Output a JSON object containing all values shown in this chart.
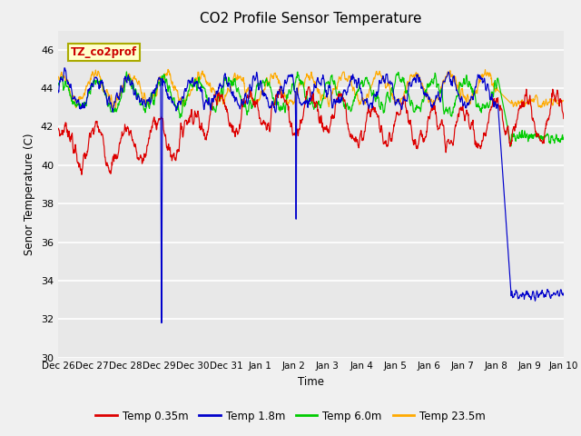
{
  "title": "CO2 Profile Sensor Temperature",
  "ylabel": "Senor Temperature (C)",
  "xlabel": "Time",
  "annotation": "TZ_co2prof",
  "ylim": [
    30,
    47
  ],
  "yticks": [
    30,
    32,
    34,
    36,
    38,
    40,
    42,
    44,
    46
  ],
  "line_colors": {
    "temp035": "#dd0000",
    "temp18": "#0000cc",
    "temp60": "#00cc00",
    "temp235": "#ffaa00"
  },
  "legend_labels": [
    "Temp 0.35m",
    "Temp 1.8m",
    "Temp 6.0m",
    "Temp 23.5m"
  ],
  "x_tick_labels": [
    "Dec 26",
    "Dec 27",
    "Dec 28",
    "Dec 29",
    "Dec 30",
    "Dec 31",
    "Jan 1",
    "Jan 2",
    "Jan 3",
    "Jan 4",
    "Jan 5",
    "Jan 6",
    "Jan 7",
    "Jan 8",
    "Jan 9",
    "Jan 10"
  ],
  "n_days": 15,
  "n_pts_per_day": 96,
  "seed": 7
}
